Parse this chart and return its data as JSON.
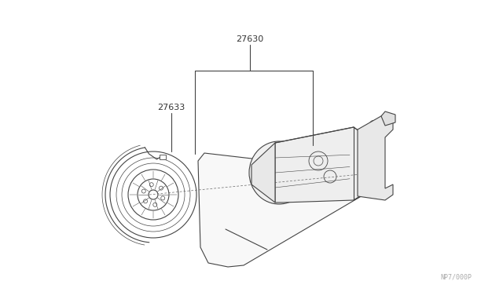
{
  "bg_color": "#ffffff",
  "line_color": "#444444",
  "text_color": "#333333",
  "label_27630": "27630",
  "label_27633": "27633",
  "watermark": "NP7/000P",
  "fig_width": 6.4,
  "fig_height": 3.72,
  "dpi": 100
}
